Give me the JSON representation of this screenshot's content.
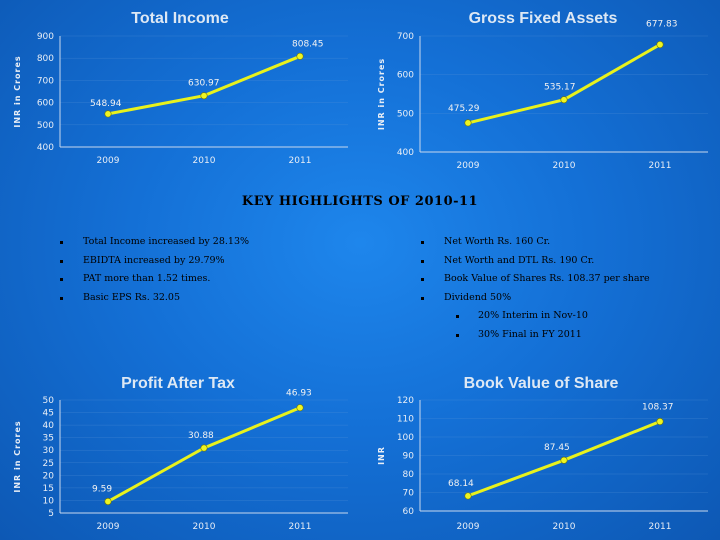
{
  "chart_data": [
    {
      "type": "line",
      "title": "Total Income",
      "ylabel": "INR in Crores",
      "categories": [
        "2009",
        "2010",
        "2011"
      ],
      "values": [
        548.94,
        630.97,
        808.45
      ],
      "data_labels": [
        "548.94",
        "630.97",
        "808.45"
      ],
      "ylim": [
        400,
        900
      ],
      "yticks": [
        "400",
        "500",
        "600",
        "700",
        "800",
        "900"
      ],
      "line_color": "#e8f21c"
    },
    {
      "type": "line",
      "title": "Gross Fixed Assets",
      "ylabel": "INR in Crores",
      "categories": [
        "2009",
        "2010",
        "2011"
      ],
      "values": [
        475.29,
        535.17,
        677.83
      ],
      "data_labels": [
        "475.29",
        "535.17",
        "677.83"
      ],
      "ylim": [
        400,
        700
      ],
      "yticks": [
        "400",
        "500",
        "600",
        "700"
      ],
      "line_color": "#e8f21c"
    },
    {
      "type": "line",
      "title": "Profit After Tax",
      "ylabel": "INR in Crores",
      "categories": [
        "2009",
        "2010",
        "2011"
      ],
      "values": [
        9.59,
        30.88,
        46.93
      ],
      "data_labels": [
        "9.59",
        "30.88",
        "46.93"
      ],
      "ylim": [
        5,
        50
      ],
      "yticks": [
        "5",
        "10",
        "15",
        "20",
        "25",
        "30",
        "35",
        "40",
        "45",
        "50"
      ],
      "line_color": "#e8f21c"
    },
    {
      "type": "line",
      "title": "Book Value of Share",
      "ylabel": "INR",
      "categories": [
        "2009",
        "2010",
        "2011"
      ],
      "values": [
        68.14,
        87.45,
        108.37
      ],
      "data_labels": [
        "68.14",
        "87.45",
        "108.37"
      ],
      "ylim": [
        60,
        120
      ],
      "yticks": [
        "60",
        "70",
        "80",
        "90",
        "100",
        "110",
        "120"
      ],
      "line_color": "#e8f21c"
    }
  ],
  "highlights": {
    "heading": "KEY HIGHLIGHTS OF 2010-11",
    "left": [
      "Total Income increased by 28.13%",
      "EBIDTA increased by 29.79%",
      "PAT more than 1.52 times.",
      "Basic EPS Rs. 32.05"
    ],
    "right": [
      "Net Worth Rs. 160 Cr.",
      "Net Worth and DTL Rs. 190 Cr.",
      "Book Value of Shares Rs. 108.37 per share",
      "Dividend 50%"
    ],
    "dividend_details": [
      "20% Interim in Nov-10",
      "30% Final in FY 2011"
    ]
  }
}
